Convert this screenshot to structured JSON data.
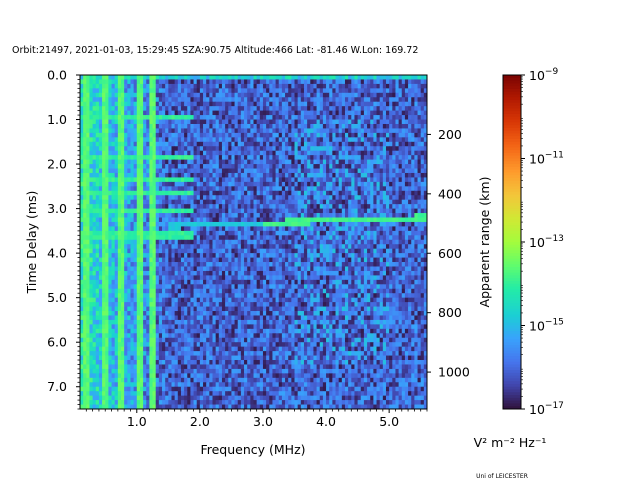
{
  "title": "Orbit:21497, 2021-01-03, 15:29:45 SZA:90.75 Altitude:466 Lat: -81.46 W.Lon: 169.72",
  "footer": "Uni of LEICESTER",
  "chart_data": {
    "type": "heatmap",
    "x_range": [
      0.1,
      5.6
    ],
    "y_range": [
      0.0,
      7.5
    ],
    "y_inverted": true,
    "xlabel": "Frequency (MHz)",
    "ylabel": "Time Delay (ms)",
    "x_ticks": [
      1.0,
      2.0,
      3.0,
      4.0,
      5.0
    ],
    "x_tick_labels": [
      "1.0",
      "2.0",
      "3.0",
      "4.0",
      "5.0"
    ],
    "y_ticks": [
      0.0,
      1.0,
      2.0,
      3.0,
      4.0,
      5.0,
      6.0,
      7.0
    ],
    "y_tick_labels": [
      "0.0",
      "1.0",
      "2.0",
      "3.0",
      "4.0",
      "5.0",
      "6.0",
      "7.0"
    ],
    "y2label": "Apparent range (km)",
    "y2_ticks": [
      200,
      400,
      600,
      800,
      1000
    ],
    "y2_tick_labels": [
      "200",
      "400",
      "600",
      "800",
      "1000"
    ],
    "y2_per_ms_km": 149.9,
    "colorbar": {
      "colormap": "turbo",
      "scale": "log",
      "range": [
        1e-17,
        1e-09
      ],
      "ticks": [
        1e-17,
        1e-15,
        1e-13,
        1e-11,
        1e-09
      ],
      "tick_exponents": [
        "−17",
        "−15",
        "−13",
        "−11",
        "−9"
      ],
      "tick_base": "10",
      "unit_label": "V² m⁻² Hz⁻¹"
    },
    "features": {
      "trace_top_ms": 0.15,
      "low_freq_strong_columns_mhz": [
        0.2,
        0.5,
        0.75,
        1.05,
        1.25
      ],
      "echo_trace_mhz": [
        1.5,
        5.6
      ],
      "echo_trace_ms": [
        3.4,
        3.2
      ],
      "bright_echo_segment_mhz": [
        3.0,
        5.6
      ],
      "low_freq_horizontal_bands_ms": [
        0.95,
        1.85,
        2.35,
        2.65,
        3.05,
        3.6
      ]
    }
  }
}
